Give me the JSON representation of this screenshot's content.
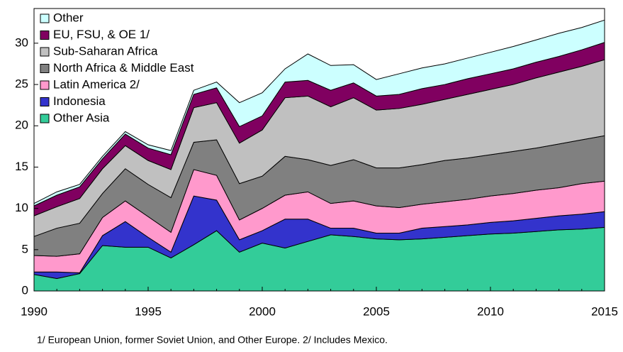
{
  "chart_data": {
    "type": "stacked_area",
    "x": [
      1990,
      1991,
      1992,
      1993,
      1994,
      1995,
      1996,
      1997,
      1998,
      1999,
      2000,
      2001,
      2002,
      2003,
      2004,
      2005,
      2006,
      2007,
      2008,
      2009,
      2010,
      2011,
      2012,
      2013,
      2014,
      2015
    ],
    "xlim": [
      1990,
      2015
    ],
    "xticks": [
      1990,
      1995,
      2000,
      2005,
      2010,
      2015
    ],
    "ylim": [
      0,
      34.2
    ],
    "yticks": [
      0,
      5,
      10,
      15,
      20,
      25,
      30
    ],
    "legend": "upper-left",
    "series": [
      {
        "name": "Other Asia",
        "color": "#33cc99",
        "values": [
          2.0,
          1.5,
          2.1,
          5.5,
          5.3,
          5.3,
          4.0,
          5.6,
          7.3,
          4.7,
          5.8,
          5.2,
          6.0,
          6.8,
          6.6,
          6.3,
          6.2,
          6.3,
          6.5,
          6.7,
          6.9,
          7.0,
          7.2,
          7.4,
          7.5,
          7.7
        ]
      },
      {
        "name": "Indonesia",
        "color": "#3333cc",
        "values": [
          0.3,
          0.8,
          0.1,
          1.2,
          3.1,
          1.2,
          0.7,
          5.9,
          3.7,
          1.5,
          1.5,
          3.5,
          2.7,
          0.8,
          1.0,
          0.7,
          0.8,
          1.3,
          1.3,
          1.3,
          1.4,
          1.5,
          1.6,
          1.7,
          1.8,
          1.9
        ]
      },
      {
        "name": "Latin America  2/",
        "color": "#ff99cc",
        "values": [
          2.0,
          1.9,
          2.3,
          2.2,
          2.5,
          2.5,
          2.4,
          3.2,
          3.0,
          2.4,
          2.7,
          2.9,
          3.3,
          3.0,
          3.3,
          3.3,
          3.1,
          2.9,
          3.0,
          3.1,
          3.2,
          3.3,
          3.4,
          3.4,
          3.7,
          3.7
        ]
      },
      {
        "name": "North Africa & Middle East",
        "color": "#808080",
        "values": [
          2.3,
          3.4,
          3.7,
          2.9,
          3.9,
          3.9,
          4.2,
          3.3,
          4.3,
          4.4,
          3.9,
          4.7,
          3.9,
          4.6,
          5.0,
          4.6,
          4.8,
          4.8,
          5.0,
          5.0,
          5.0,
          5.1,
          5.1,
          5.3,
          5.3,
          5.5
        ]
      },
      {
        "name": "Sub-Saharan Africa",
        "color": "#c0c0c0",
        "values": [
          2.5,
          2.6,
          3.0,
          3.0,
          2.8,
          2.9,
          3.4,
          4.2,
          4.5,
          4.9,
          5.6,
          7.1,
          7.7,
          7.1,
          7.5,
          7.0,
          7.2,
          7.3,
          7.4,
          7.7,
          7.9,
          8.1,
          8.5,
          8.7,
          8.9,
          9.2
        ]
      },
      {
        "name": "EU, FSU, & OE 1/",
        "color": "#800060",
        "values": [
          1.2,
          1.4,
          1.4,
          1.2,
          1.4,
          1.5,
          1.8,
          1.6,
          1.8,
          2.0,
          1.7,
          1.9,
          1.9,
          2.0,
          1.8,
          1.7,
          1.7,
          1.9,
          1.8,
          1.9,
          1.9,
          1.9,
          1.9,
          1.9,
          2.0,
          2.1
        ]
      },
      {
        "name": "Other",
        "color": "#ccffff",
        "values": [
          0.3,
          0.4,
          0.3,
          0.3,
          0.3,
          0.4,
          0.5,
          0.5,
          0.7,
          2.9,
          2.8,
          1.6,
          3.2,
          3.0,
          2.2,
          2.0,
          2.5,
          2.5,
          2.5,
          2.5,
          2.6,
          2.7,
          2.7,
          2.8,
          2.7,
          2.7
        ]
      }
    ],
    "footnote": "1/ European Union, former Soviet Union, and Other Europe. 2/ Includes Mexico."
  }
}
